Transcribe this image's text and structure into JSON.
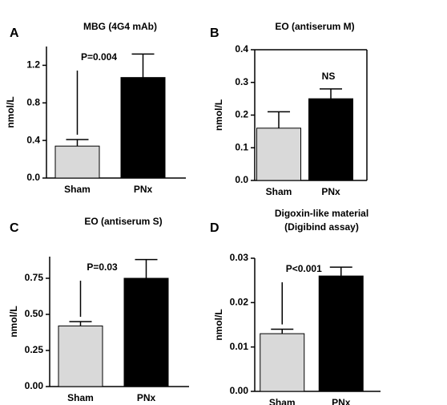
{
  "chart_data": [
    {
      "type": "bar",
      "label": "A",
      "title": [
        "MBG (4G4 mAb)"
      ],
      "ylabel": "nmol/L",
      "categories": [
        "Sham",
        "PNx"
      ],
      "values": [
        0.34,
        1.07
      ],
      "errors": [
        0.07,
        0.25
      ],
      "colors": [
        "#d9d9d9",
        "#000000"
      ],
      "ylim": [
        0,
        1.4
      ],
      "yticks": [
        {
          "value": 0,
          "label": "0.0"
        },
        0.4,
        0.8,
        1.2
      ],
      "frame": false,
      "annotation": "P=0.004",
      "annotation_line": true
    },
    {
      "type": "bar",
      "label": "B",
      "title": [
        "EO (antiserum M)"
      ],
      "ylabel": "nmol/L",
      "categories": [
        "Sham",
        "PNx"
      ],
      "values": [
        0.16,
        0.25
      ],
      "errors": [
        0.05,
        0.03
      ],
      "colors": [
        "#d9d9d9",
        "#000000"
      ],
      "ylim": [
        0,
        0.4
      ],
      "yticks": [
        {
          "value": 0,
          "label": "0.0"
        },
        0.1,
        0.2,
        0.3,
        0.4
      ],
      "frame": true,
      "annotation": "NS",
      "annotation_line": false
    },
    {
      "type": "bar",
      "label": "C",
      "title": [
        "EO (antiserum S)"
      ],
      "ylabel": "nmol/L",
      "categories": [
        "Sham",
        "PNx"
      ],
      "values": [
        0.42,
        0.75
      ],
      "errors": [
        0.03,
        0.13
      ],
      "colors": [
        "#d9d9d9",
        "#000000"
      ],
      "ylim": [
        0,
        0.9
      ],
      "yticks": [
        {
          "value": 0,
          "label": "0.00"
        },
        0.25,
        {
          "value": 0.5,
          "label": "0.50"
        },
        0.75
      ],
      "frame": false,
      "annotation": "P=0.03",
      "annotation_line": true
    },
    {
      "type": "bar",
      "label": "D",
      "title": [
        "Digoxin-like material",
        "(Digibind assay)"
      ],
      "ylabel": "nmol/L",
      "categories": [
        "Sham",
        "PNx"
      ],
      "values": [
        0.013,
        0.026
      ],
      "errors": [
        0.001,
        0.002
      ],
      "colors": [
        "#d9d9d9",
        "#000000"
      ],
      "ylim": [
        0,
        0.03
      ],
      "yticks": [
        {
          "value": 0,
          "label": "0.00"
        },
        0.01,
        0.02,
        0.03
      ],
      "frame": false,
      "annotation": "P<0.001",
      "annotation_line": true
    }
  ]
}
